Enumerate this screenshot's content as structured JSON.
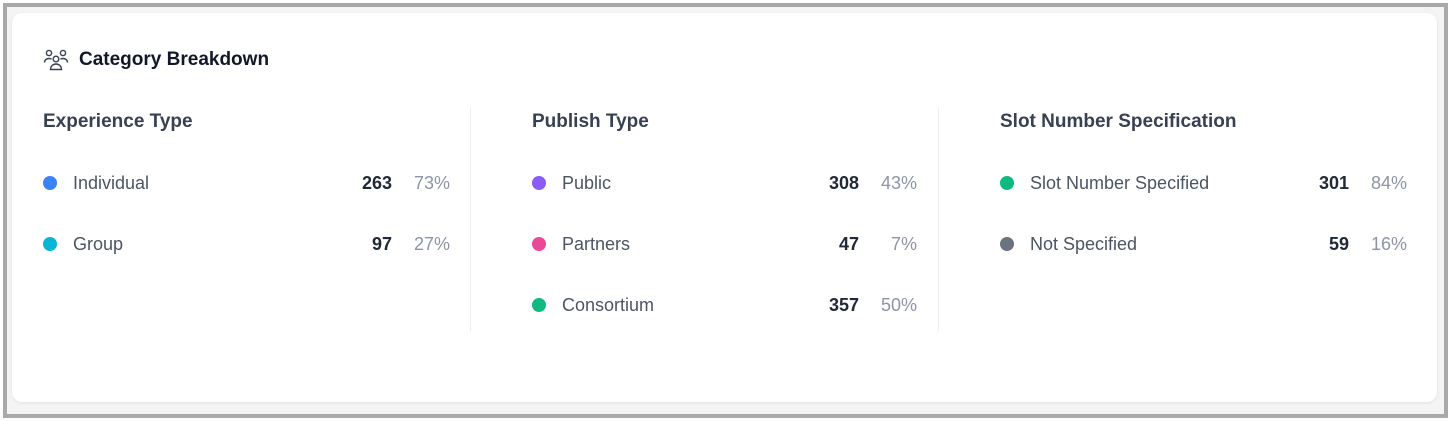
{
  "title": "Category Breakdown",
  "title_icon": "users-icon",
  "sections": [
    {
      "heading": "Experience Type",
      "items": [
        {
          "label": "Individual",
          "count": "263",
          "percent": "73%",
          "color": "#3b82f6"
        },
        {
          "label": "Group",
          "count": "97",
          "percent": "27%",
          "color": "#06b6d4"
        }
      ]
    },
    {
      "heading": "Publish Type",
      "items": [
        {
          "label": "Public",
          "count": "308",
          "percent": "43%",
          "color": "#8b5cf6"
        },
        {
          "label": "Partners",
          "count": "47",
          "percent": "7%",
          "color": "#ec4899"
        },
        {
          "label": "Consortium",
          "count": "357",
          "percent": "50%",
          "color": "#10b981"
        }
      ]
    },
    {
      "heading": "Slot Number Specification",
      "items": [
        {
          "label": "Slot Number Specified",
          "count": "301",
          "percent": "84%",
          "color": "#10b981"
        },
        {
          "label": "Not Specified",
          "count": "59",
          "percent": "16%",
          "color": "#6b7280"
        }
      ]
    }
  ]
}
